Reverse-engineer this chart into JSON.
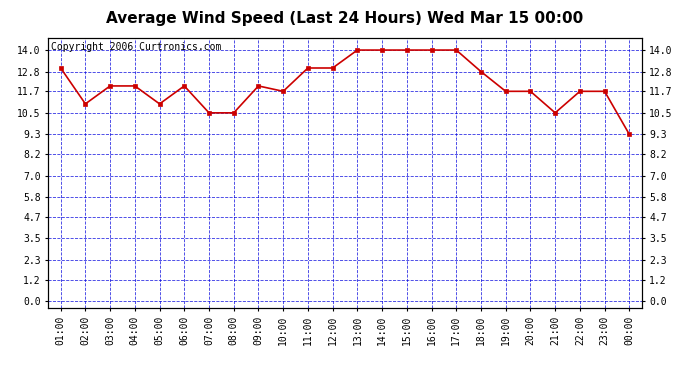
{
  "title": "Average Wind Speed (Last 24 Hours) Wed Mar 15 00:00",
  "copyright": "Copyright 2006 Curtronics.com",
  "x_labels": [
    "01:00",
    "02:00",
    "03:00",
    "04:00",
    "05:00",
    "06:00",
    "07:00",
    "08:00",
    "09:00",
    "10:00",
    "11:00",
    "12:00",
    "13:00",
    "14:00",
    "15:00",
    "16:00",
    "17:00",
    "18:00",
    "19:00",
    "20:00",
    "21:00",
    "22:00",
    "23:00",
    "00:00"
  ],
  "y_values": [
    13.0,
    11.0,
    12.0,
    12.0,
    11.0,
    12.0,
    10.5,
    10.5,
    12.0,
    11.7,
    13.0,
    13.0,
    14.0,
    14.0,
    14.0,
    14.0,
    14.0,
    12.8,
    11.7,
    11.7,
    10.5,
    11.7,
    11.7,
    9.3
  ],
  "line_color": "#cc0000",
  "marker_color": "#cc0000",
  "marker": "s",
  "marker_size": 2.5,
  "line_width": 1.2,
  "bg_color": "#ffffff",
  "plot_bg_color": "#ffffff",
  "grid_color": "#0000dd",
  "title_fontsize": 11,
  "copyright_fontsize": 7,
  "tick_fontsize": 7,
  "ytick_values": [
    0.0,
    1.2,
    2.3,
    3.5,
    4.7,
    5.8,
    7.0,
    8.2,
    9.3,
    10.5,
    11.7,
    12.8,
    14.0
  ],
  "ylim": [
    -0.35,
    14.7
  ],
  "xlim": [
    -0.5,
    23.5
  ]
}
